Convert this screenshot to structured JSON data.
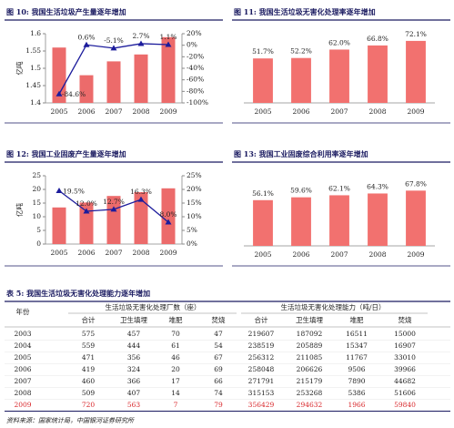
{
  "chart_data": [
    {
      "type": "bar",
      "title": "图 10: 我国生活垃圾产生量逐年增加",
      "y_label": "亿吨",
      "categories": [
        "2005",
        "2006",
        "2007",
        "2008",
        "2009"
      ],
      "series": [
        {
          "type": "bar",
          "color": "#ec6b6b",
          "values": [
            1.56,
            1.48,
            1.52,
            1.54,
            1.59
          ]
        },
        {
          "type": "line",
          "axis": "y2",
          "color": "#1c1c9c",
          "values": [
            -84.6,
            0.6,
            -5.1,
            2.7,
            1.1
          ],
          "value_labels": [
            "-84.6%",
            "0.6%",
            "-5.1%",
            "2.7%",
            "1.1%"
          ]
        }
      ],
      "ylim": [
        1.4,
        1.6
      ],
      "yticks": [
        1.4,
        1.45,
        1.5,
        1.55,
        1.6
      ],
      "y2lim": [
        -100,
        20
      ],
      "y2ticks": [
        {
          "value": -100,
          "label": "-100%"
        },
        {
          "value": -80,
          "label": "-80%"
        },
        {
          "value": -60,
          "label": "-60%"
        },
        {
          "value": -40,
          "label": "-40%"
        },
        {
          "value": -20,
          "label": "-20%"
        },
        {
          "value": 0,
          "label": "0%"
        },
        {
          "value": 20,
          "label": "20%"
        }
      ]
    },
    {
      "type": "bar",
      "title": "图 11: 我国生活垃圾无害化处理率逐年增加",
      "categories": [
        "2005",
        "2006",
        "2007",
        "2008",
        "2009"
      ],
      "values": [
        51.7,
        52.2,
        62.0,
        66.8,
        72.1
      ],
      "value_labels": [
        "51.7%",
        "52.2%",
        "62.0%",
        "66.8%",
        "72.1%"
      ],
      "color": "#f2716f",
      "ylim": [
        0,
        90
      ]
    },
    {
      "type": "bar",
      "title": "图 12: 我国工业固废产生量逐年增加",
      "y_label": "亿吨",
      "categories": [
        "2005",
        "2006",
        "2007",
        "2008",
        "2009"
      ],
      "series": [
        {
          "type": "bar",
          "color": "#ec6b6b",
          "values": [
            13.4,
            15.2,
            17.6,
            19.0,
            20.4
          ]
        },
        {
          "type": "line",
          "axis": "y2",
          "color": "#1c1c9c",
          "values": [
            19.5,
            12.0,
            12.7,
            16.3,
            8.0
          ],
          "value_labels": [
            "19.5%",
            "12.0%",
            "12.7%",
            "16.3%",
            "8.0%"
          ]
        }
      ],
      "ylim": [
        0,
        25
      ],
      "yticks": [
        0,
        5,
        10,
        15,
        20,
        25
      ],
      "y2lim": [
        0,
        25
      ],
      "y2ticks": [
        {
          "value": 0,
          "label": "0%"
        },
        {
          "value": 5,
          "label": "5%"
        },
        {
          "value": 10,
          "label": "10%"
        },
        {
          "value": 15,
          "label": "15%"
        },
        {
          "value": 20,
          "label": "20%"
        },
        {
          "value": 25,
          "label": "25%"
        }
      ]
    },
    {
      "type": "bar",
      "title": "图 13: 我国工业固废综合利用率逐年增加",
      "categories": [
        "2005",
        "2006",
        "2007",
        "2008",
        "2009"
      ],
      "values": [
        56.1,
        59.6,
        62.1,
        64.3,
        67.8
      ],
      "value_labels": [
        "56.1%",
        "59.6%",
        "62.1%",
        "64.3%",
        "67.8%"
      ],
      "color": "#f2716f",
      "ylim": [
        0,
        95
      ]
    }
  ],
  "table": {
    "title": "表 5: 我国生活垃圾无害化处理能力逐年增加",
    "header": {
      "year": "年份",
      "groups": [
        "生活垃圾无害化处理厂数（座）",
        "生活垃圾无害化处理能力（吨/日）"
      ],
      "columns": [
        "合计",
        "卫生填埋",
        "堆肥",
        "焚烧",
        "合计",
        "卫生填埋",
        "堆肥",
        "焚烧"
      ]
    },
    "rows": [
      [
        "2003",
        575,
        457,
        70,
        47,
        219607,
        187092,
        16511,
        15000
      ],
      [
        "2004",
        559,
        444,
        61,
        54,
        238519,
        205889,
        15347,
        16907
      ],
      [
        "2005",
        471,
        356,
        46,
        67,
        256312,
        211085,
        11767,
        33010
      ],
      [
        "2006",
        419,
        324,
        20,
        69,
        258048,
        206626,
        9506,
        39966
      ],
      [
        "2007",
        460,
        366,
        17,
        66,
        271791,
        215179,
        7890,
        44682
      ],
      [
        "2008",
        509,
        407,
        14,
        74,
        315153,
        253268,
        5386,
        51606
      ],
      [
        "2009",
        720,
        563,
        7,
        79,
        356429,
        294632,
        1966,
        59840
      ]
    ],
    "source": "资料来源：国家统计局，中国银河证券研究所"
  }
}
